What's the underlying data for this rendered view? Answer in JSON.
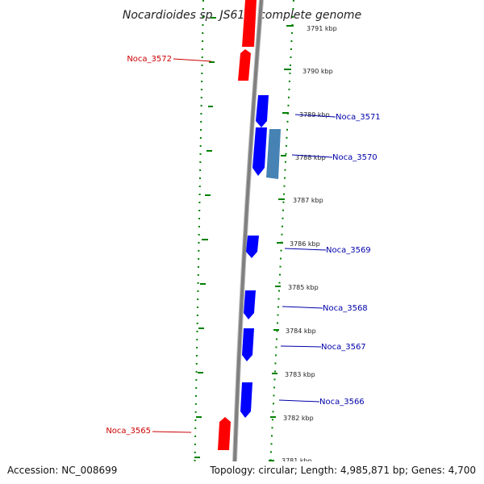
{
  "title": "Nocardioides sp. JS614, complete genome",
  "footer": {
    "accession": "Accession: NC_008699",
    "topology": "Topology: circular; Length: 4,985,871 bp; Genes: 4,700"
  },
  "ticks": [
    "3791 kbp",
    "3790 kbp",
    "3789 kbp",
    "3788 kbp",
    "3787 kbp",
    "3786 kbp",
    "3785 kbp",
    "3784 kbp",
    "3783 kbp",
    "3782 kbp",
    "3781 kbp"
  ],
  "genes": [
    {
      "label": "Noca_3572",
      "strand": "reverse",
      "color": "#ff0000"
    },
    {
      "label": "Noca_3571",
      "strand": "forward",
      "color": "#0000ff"
    },
    {
      "label": "Noca_3570",
      "strand": "forward",
      "color": "#0000ff"
    },
    {
      "label": "Noca_3569",
      "strand": "forward",
      "color": "#0000ff"
    },
    {
      "label": "Noca_3568",
      "strand": "forward",
      "color": "#0000ff"
    },
    {
      "label": "Noca_3567",
      "strand": "forward",
      "color": "#0000ff"
    },
    {
      "label": "Noca_3566",
      "strand": "forward",
      "color": "#0000ff"
    },
    {
      "label": "Noca_3565",
      "strand": "reverse",
      "color": "#ff0000"
    }
  ],
  "colors": {
    "reverse_gene": "#ff0000",
    "forward_gene": "#0000ff",
    "rna_feature": "#4682b4",
    "backbone": "#808080",
    "dotted_ring": "#008000",
    "reverse_label": "#cc0000",
    "forward_label": "#0000aa"
  }
}
